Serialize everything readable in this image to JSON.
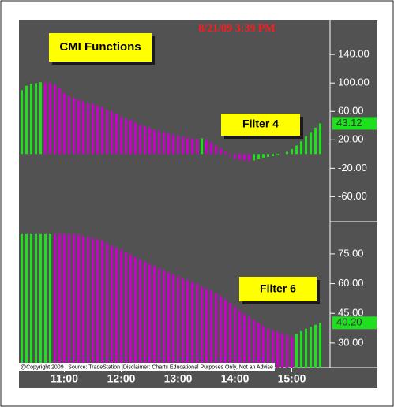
{
  "chart_data": [
    {
      "type": "bar",
      "title": "8/21/09 3:39 PM",
      "annotations": [
        "CMI Functions",
        "Filter 4"
      ],
      "values": [
        90,
        96,
        99,
        100,
        101,
        100,
        100,
        97,
        92,
        86,
        81,
        79,
        77,
        74,
        72,
        71,
        68,
        66,
        62,
        60,
        57,
        53,
        50,
        48,
        44,
        41,
        39,
        37,
        34,
        33,
        31,
        29,
        27,
        26,
        24,
        23,
        22,
        21,
        22,
        20,
        17,
        12,
        8,
        3,
        -2,
        -6,
        -8,
        -9,
        -10,
        -9,
        -7,
        -5,
        -4,
        -3,
        -2,
        0,
        3,
        7,
        12,
        18,
        25,
        31,
        37,
        43.12
      ],
      "colors": [
        "#1fe01f",
        "#1fe01f",
        "#1fe01f",
        "#1fe01f",
        "#1fe01f",
        "#cc00cc",
        "#cc00cc",
        "#cc00cc",
        "#cc00cc",
        "#cc00cc",
        "#cc00cc",
        "#cc00cc",
        "#cc00cc",
        "#cc00cc",
        "#cc00cc",
        "#cc00cc",
        "#cc00cc",
        "#cc00cc",
        "#cc00cc",
        "#cc00cc",
        "#cc00cc",
        "#cc00cc",
        "#cc00cc",
        "#cc00cc",
        "#cc00cc",
        "#cc00cc",
        "#cc00cc",
        "#cc00cc",
        "#cc00cc",
        "#cc00cc",
        "#cc00cc",
        "#cc00cc",
        "#cc00cc",
        "#cc00cc",
        "#cc00cc",
        "#cc00cc",
        "#cc00cc",
        "#cc00cc",
        "#1fe01f",
        "#cc00cc",
        "#cc00cc",
        "#cc00cc",
        "#cc00cc",
        "#cc00cc",
        "#cc00cc",
        "#cc00cc",
        "#cc00cc",
        "#cc00cc",
        "#cc00cc",
        "#1fe01f",
        "#1fe01f",
        "#1fe01f",
        "#1fe01f",
        "#1fe01f",
        "#1fe01f",
        "#1fe01f",
        "#1fe01f",
        "#1fe01f",
        "#1fe01f",
        "#1fe01f",
        "#1fe01f",
        "#1fe01f",
        "#1fe01f",
        "#1fe01f"
      ],
      "last_value_label": "43.12",
      "ylim": [
        -94,
        189
      ],
      "yticks": [
        {
          "value": 140,
          "label": "140.00"
        },
        {
          "value": 100,
          "label": "100.00"
        },
        {
          "value": 60,
          "label": "60.00"
        },
        {
          "value": 20,
          "label": "20.00"
        },
        {
          "value": -20,
          "label": "-20.00"
        },
        {
          "value": -60,
          "label": "-60.00"
        }
      ]
    },
    {
      "type": "bar",
      "annotations": [
        "Filter 6"
      ],
      "footnote": "@Copyright 2009 | Source: TradeStation |Disclaimer: Charts Educational Purposes Only, Not an Advise",
      "categories": [
        null,
        null,
        null,
        null,
        null,
        null,
        null,
        null,
        null,
        "11:00",
        null,
        null,
        null,
        null,
        null,
        null,
        null,
        null,
        null,
        null,
        null,
        "12:00",
        null,
        null,
        null,
        null,
        null,
        null,
        null,
        null,
        null,
        null,
        null,
        "13:00",
        null,
        null,
        null,
        null,
        null,
        null,
        null,
        null,
        null,
        null,
        null,
        "14:00",
        null,
        null,
        null,
        null,
        null,
        null,
        null,
        null,
        null,
        null,
        null,
        "15:00",
        null,
        null,
        null,
        null,
        null,
        null
      ],
      "values": [
        85,
        85,
        85,
        85,
        85,
        85,
        85,
        85,
        85,
        85,
        85,
        85,
        84.6,
        84,
        83.5,
        83,
        82.4,
        81.8,
        80.6,
        79.4,
        78.2,
        77,
        75.8,
        74.6,
        73.4,
        72.2,
        71,
        69.8,
        68.8,
        67.8,
        66.7,
        65.6,
        64.6,
        63.7,
        62.7,
        61.8,
        60.8,
        59.9,
        58.7,
        57.5,
        56.3,
        55.1,
        53.9,
        52,
        50.2,
        48.4,
        46.5,
        44.7,
        43.2,
        41.7,
        40.2,
        38.7,
        37.2,
        36.4,
        35.6,
        34.8,
        34,
        33.2,
        34.5,
        36,
        37.2,
        38.2,
        39.2,
        40.2
      ],
      "colors": [
        "#1fe01f",
        "#1fe01f",
        "#1fe01f",
        "#1fe01f",
        "#1fe01f",
        "#1fe01f",
        "#1fe01f",
        "#cc00cc",
        "#cc00cc",
        "#cc00cc",
        "#cc00cc",
        "#cc00cc",
        "#cc00cc",
        "#cc00cc",
        "#cc00cc",
        "#cc00cc",
        "#cc00cc",
        "#cc00cc",
        "#cc00cc",
        "#cc00cc",
        "#cc00cc",
        "#cc00cc",
        "#cc00cc",
        "#cc00cc",
        "#cc00cc",
        "#cc00cc",
        "#cc00cc",
        "#cc00cc",
        "#cc00cc",
        "#cc00cc",
        "#cc00cc",
        "#cc00cc",
        "#cc00cc",
        "#cc00cc",
        "#cc00cc",
        "#cc00cc",
        "#cc00cc",
        "#cc00cc",
        "#cc00cc",
        "#cc00cc",
        "#cc00cc",
        "#cc00cc",
        "#cc00cc",
        "#cc00cc",
        "#cc00cc",
        "#cc00cc",
        "#cc00cc",
        "#cc00cc",
        "#cc00cc",
        "#cc00cc",
        "#cc00cc",
        "#cc00cc",
        "#cc00cc",
        "#cc00cc",
        "#cc00cc",
        "#cc00cc",
        "#cc00cc",
        "#cc00cc",
        "#1fe01f",
        "#1fe01f",
        "#1fe01f",
        "#1fe01f",
        "#1fe01f",
        "#1fe01f"
      ],
      "last_value_label": "40.20",
      "ylim": [
        17.6,
        90.5
      ],
      "yticks": [
        {
          "value": 75,
          "label": "75.00"
        },
        {
          "value": 60,
          "label": "60.00"
        },
        {
          "value": 45,
          "label": "45.00"
        },
        {
          "value": 30,
          "label": "30.00"
        }
      ]
    }
  ]
}
